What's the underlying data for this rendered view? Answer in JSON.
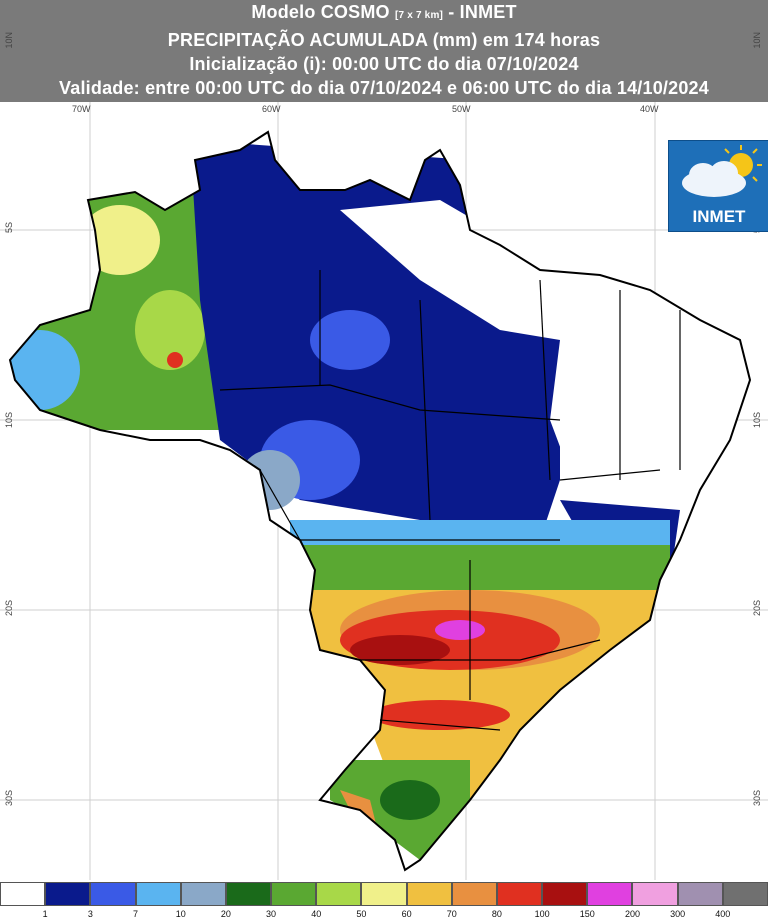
{
  "header": {
    "title_main": "Modelo COSMO",
    "title_res": "[7 x 7 km]",
    "title_org": "- INMET",
    "line2": "PRECIPITAÇÃO ACUMULADA (mm) em 174 horas",
    "line3": "Inicialização (i): 00:00 UTC do dia 07/10/2024",
    "line4": "Validade: entre 00:00 UTC do dia 07/10/2024 e 06:00 UTC do dia 14/10/2024"
  },
  "axes": {
    "lon_labels": [
      "70W",
      "60W",
      "50W",
      "40W"
    ],
    "lat_labels": [
      "10N",
      "5S",
      "10S",
      "20S",
      "30S"
    ]
  },
  "logo": {
    "text": "INMET"
  },
  "legend": {
    "colors": [
      "#ffffff",
      "#0a1a8c",
      "#3a5ae6",
      "#5ab4f0",
      "#8aa8c8",
      "#1a6a1a",
      "#5aa832",
      "#a8d848",
      "#f0f08a",
      "#f0c040",
      "#e89040",
      "#e03020",
      "#a81010",
      "#e040e0",
      "#f0a0e0",
      "#a090b0",
      "#707070"
    ],
    "labels": [
      "1",
      "3",
      "7",
      "10",
      "20",
      "30",
      "40",
      "50",
      "60",
      "70",
      "80",
      "100",
      "150",
      "200",
      "300",
      "400"
    ]
  }
}
